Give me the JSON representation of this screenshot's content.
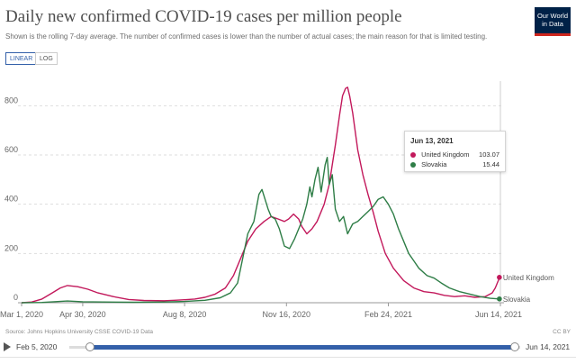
{
  "header": {
    "title": "Daily new confirmed COVID-19 cases per million people",
    "subtitle": "Shown is the rolling 7-day average. The number of confirmed cases is lower than the number of actual cases; the main reason for that is limited testing.",
    "logo_line1": "Our World",
    "logo_line2": "in Data"
  },
  "scale_toggle": {
    "linear": "LINEAR",
    "log": "LOG",
    "selected": "LINEAR"
  },
  "tooltip": {
    "date": "Jun 13, 2021",
    "rows": [
      {
        "name": "United Kingdom",
        "value": "103.07",
        "color": "#c2185b"
      },
      {
        "name": "Slovakia",
        "value": "15.44",
        "color": "#2e7d46"
      }
    ]
  },
  "footer": {
    "source": "Source: Johns Hopkins University CSSE COVID-19 Data",
    "license": "CC BY"
  },
  "timeline": {
    "start": "Feb 5, 2020",
    "end": "Jun 14, 2021"
  },
  "chart_data": {
    "type": "line",
    "title": "Daily new confirmed COVID-19 cases per million people",
    "xlabel": "",
    "ylabel": "",
    "x_tick_labels": [
      "Mar 1, 2020",
      "Apr 30, 2020",
      "Aug 8, 2020",
      "Nov 16, 2020",
      "Feb 24, 2021",
      "Jun 14, 2021"
    ],
    "x_tick_days": [
      0,
      60,
      160,
      260,
      360,
      470
    ],
    "y_ticks": [
      0,
      200,
      400,
      600,
      800
    ],
    "ylim": [
      0,
      900
    ],
    "xlim_days": [
      0,
      470
    ],
    "grid": true,
    "series": [
      {
        "name": "United Kingdom",
        "color": "#c2185b",
        "end_label": "United Kingdom",
        "points": [
          [
            0,
            0
          ],
          [
            10,
            3
          ],
          [
            20,
            15
          ],
          [
            30,
            40
          ],
          [
            38,
            60
          ],
          [
            45,
            70
          ],
          [
            55,
            65
          ],
          [
            65,
            55
          ],
          [
            75,
            40
          ],
          [
            90,
            25
          ],
          [
            105,
            13
          ],
          [
            120,
            9
          ],
          [
            140,
            8
          ],
          [
            150,
            10
          ],
          [
            160,
            12
          ],
          [
            170,
            15
          ],
          [
            180,
            22
          ],
          [
            190,
            35
          ],
          [
            200,
            60
          ],
          [
            208,
            110
          ],
          [
            215,
            180
          ],
          [
            222,
            250
          ],
          [
            230,
            300
          ],
          [
            238,
            330
          ],
          [
            245,
            350
          ],
          [
            252,
            340
          ],
          [
            258,
            330
          ],
          [
            262,
            340
          ],
          [
            267,
            360
          ],
          [
            272,
            340
          ],
          [
            275,
            310
          ],
          [
            280,
            280
          ],
          [
            285,
            300
          ],
          [
            290,
            330
          ],
          [
            297,
            400
          ],
          [
            302,
            480
          ],
          [
            305,
            560
          ],
          [
            308,
            640
          ],
          [
            312,
            760
          ],
          [
            315,
            840
          ],
          [
            318,
            870
          ],
          [
            320,
            875
          ],
          [
            322,
            840
          ],
          [
            325,
            770
          ],
          [
            330,
            620
          ],
          [
            335,
            520
          ],
          [
            340,
            440
          ],
          [
            345,
            370
          ],
          [
            350,
            290
          ],
          [
            357,
            200
          ],
          [
            365,
            140
          ],
          [
            375,
            90
          ],
          [
            385,
            60
          ],
          [
            395,
            45
          ],
          [
            405,
            40
          ],
          [
            415,
            30
          ],
          [
            425,
            25
          ],
          [
            435,
            28
          ],
          [
            445,
            22
          ],
          [
            455,
            25
          ],
          [
            462,
            40
          ],
          [
            465,
            60
          ],
          [
            468,
            90
          ],
          [
            469,
            103.07
          ]
        ]
      },
      {
        "name": "Slovakia",
        "color": "#2e7d46",
        "end_label": "Slovakia",
        "points": [
          [
            0,
            0
          ],
          [
            20,
            1
          ],
          [
            45,
            7
          ],
          [
            60,
            4
          ],
          [
            80,
            3
          ],
          [
            110,
            2
          ],
          [
            140,
            3
          ],
          [
            160,
            5
          ],
          [
            180,
            10
          ],
          [
            195,
            20
          ],
          [
            205,
            40
          ],
          [
            212,
            80
          ],
          [
            218,
            200
          ],
          [
            222,
            280
          ],
          [
            228,
            330
          ],
          [
            233,
            440
          ],
          [
            236,
            460
          ],
          [
            239,
            420
          ],
          [
            242,
            380
          ],
          [
            245,
            350
          ],
          [
            249,
            340
          ],
          [
            253,
            300
          ],
          [
            258,
            230
          ],
          [
            263,
            220
          ],
          [
            268,
            260
          ],
          [
            272,
            300
          ],
          [
            276,
            340
          ],
          [
            280,
            400
          ],
          [
            283,
            470
          ],
          [
            285,
            430
          ],
          [
            288,
            500
          ],
          [
            291,
            550
          ],
          [
            294,
            450
          ],
          [
            298,
            560
          ],
          [
            300,
            590
          ],
          [
            302,
            480
          ],
          [
            305,
            520
          ],
          [
            308,
            380
          ],
          [
            312,
            330
          ],
          [
            316,
            350
          ],
          [
            320,
            280
          ],
          [
            325,
            320
          ],
          [
            330,
            330
          ],
          [
            335,
            350
          ],
          [
            340,
            370
          ],
          [
            345,
            390
          ],
          [
            350,
            420
          ],
          [
            355,
            430
          ],
          [
            360,
            400
          ],
          [
            365,
            360
          ],
          [
            370,
            300
          ],
          [
            375,
            250
          ],
          [
            380,
            200
          ],
          [
            385,
            170
          ],
          [
            390,
            140
          ],
          [
            398,
            110
          ],
          [
            405,
            100
          ],
          [
            412,
            80
          ],
          [
            420,
            60
          ],
          [
            430,
            45
          ],
          [
            440,
            35
          ],
          [
            450,
            25
          ],
          [
            460,
            18
          ],
          [
            469,
            15.44
          ]
        ]
      }
    ]
  }
}
